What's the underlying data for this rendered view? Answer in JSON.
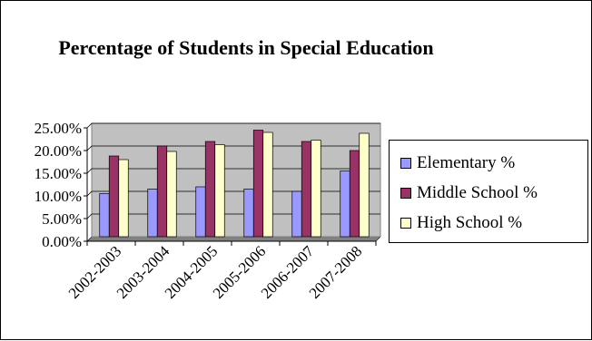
{
  "chart_data": {
    "type": "bar",
    "title": "Percentage of Students in Special Education",
    "categories": [
      "2002-2003",
      "2003-2004",
      "2004-2005",
      "2005-2006",
      "2006-2007",
      "2007-2008"
    ],
    "series": [
      {
        "name": "Elementary %",
        "color": "#9999ff",
        "values": [
          9.5,
          10.5,
          11.0,
          10.5,
          10.0,
          14.5
        ]
      },
      {
        "name": "Middle School %",
        "color": "#993366",
        "values": [
          17.8,
          20.0,
          21.0,
          23.5,
          21.0,
          19.0
        ]
      },
      {
        "name": "High School %",
        "color": "#ffffcc",
        "values": [
          17.0,
          18.8,
          20.3,
          23.0,
          21.3,
          22.8
        ]
      }
    ],
    "ylim": [
      0,
      25
    ],
    "yticks": [
      "0.00%",
      "5.00%",
      "10.00%",
      "15.00%",
      "20.00%",
      "25.00%"
    ],
    "xlabel": "",
    "ylabel": "",
    "plot_background": "#c0c0c0",
    "grid": true,
    "legend_position": "right"
  }
}
